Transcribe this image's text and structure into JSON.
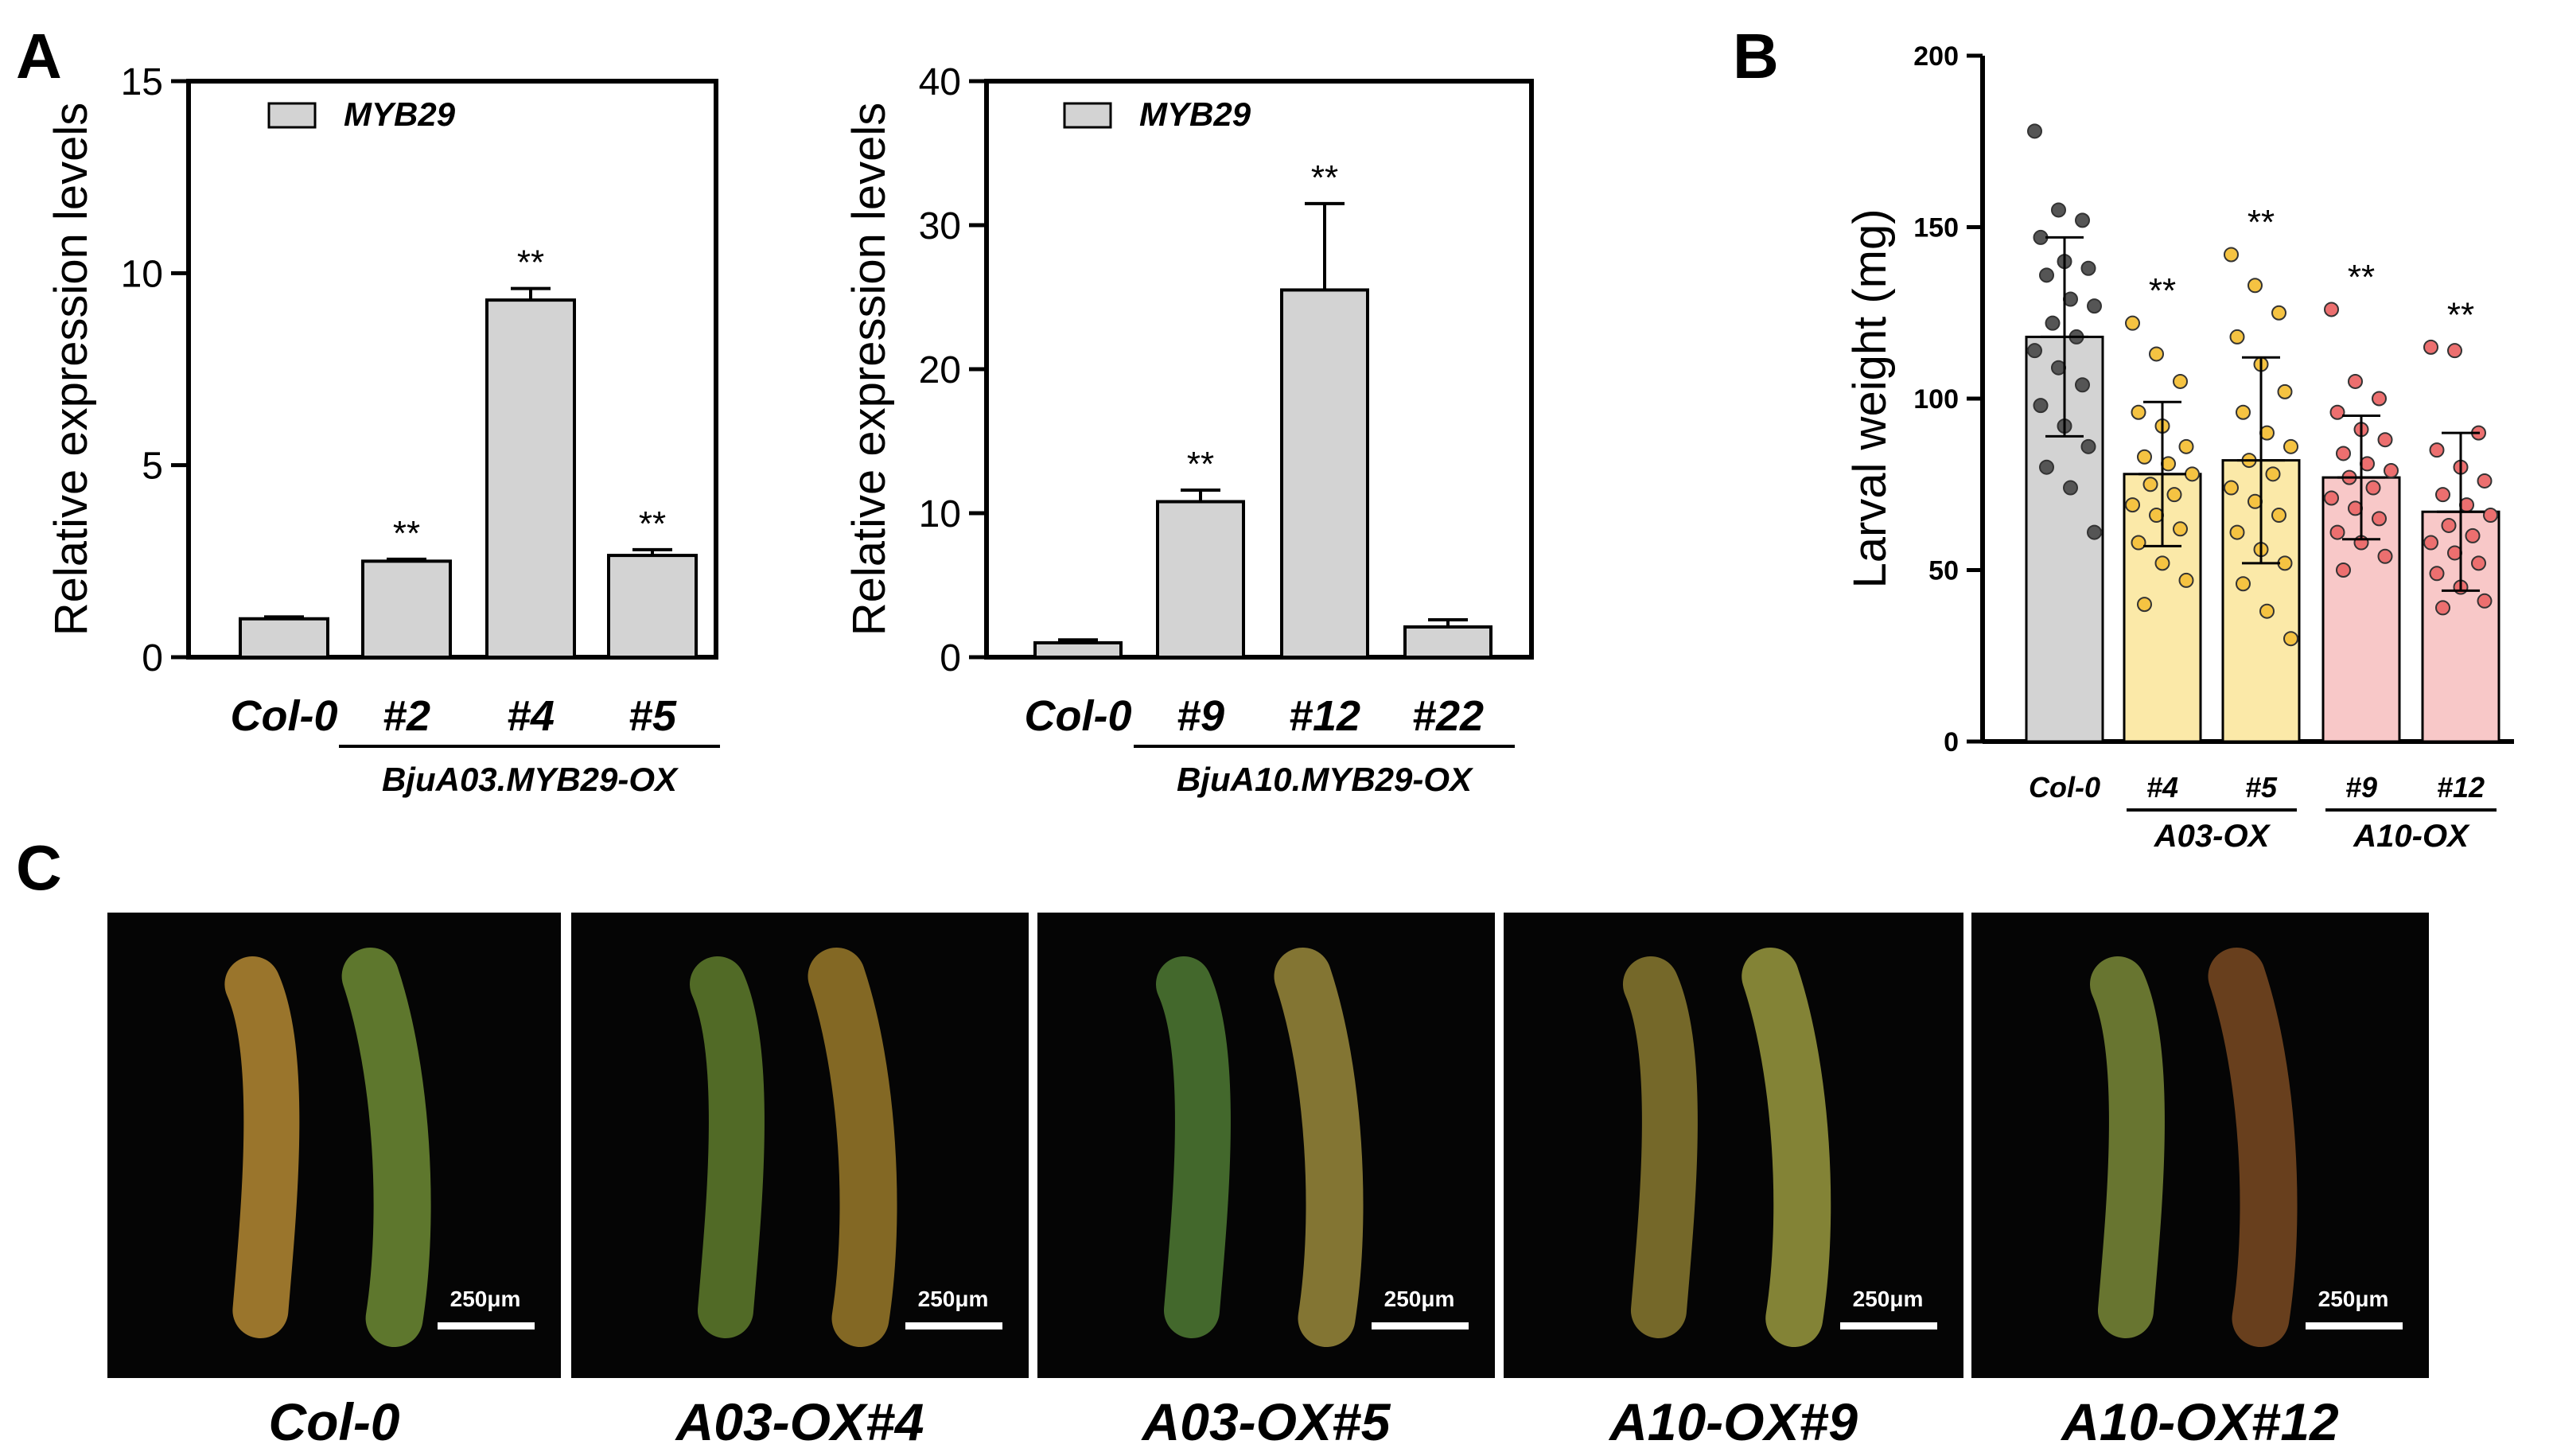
{
  "panels": {
    "A": "A",
    "B": "B",
    "C": "C"
  },
  "chart_data": [
    {
      "type": "bar",
      "panel": "A",
      "ylabel": "Relative expression levels",
      "ylim": [
        0,
        15
      ],
      "yticks": [
        "0",
        "5",
        "10",
        "15"
      ],
      "legend": {
        "entries": [
          "MYB29"
        ],
        "position": "top-left"
      },
      "categories": [
        "Col-0",
        "#2",
        "#4",
        "#5"
      ],
      "series": [
        {
          "name": "MYB29",
          "values": [
            1.0,
            2.5,
            9.3,
            2.65
          ],
          "errors": [
            0.05,
            0.05,
            0.3,
            0.15
          ]
        }
      ],
      "significance": [
        "",
        "**",
        "**",
        "**"
      ],
      "group_label": "BjuA03.MYB29-OX",
      "bar_color": "#d3d3d3"
    },
    {
      "type": "bar",
      "panel": "A",
      "ylabel": "Relative expression levels",
      "ylim": [
        0,
        40
      ],
      "yticks": [
        "0",
        "10",
        "20",
        "30",
        "40"
      ],
      "legend": {
        "entries": [
          "MYB29"
        ],
        "position": "top-left"
      },
      "categories": [
        "Col-0",
        "#9",
        "#12",
        "#22"
      ],
      "series": [
        {
          "name": "MYB29",
          "values": [
            1.0,
            10.8,
            25.5,
            2.1
          ],
          "errors": [
            0.2,
            0.8,
            6.0,
            0.5
          ]
        }
      ],
      "significance": [
        "",
        "**",
        "**",
        ""
      ],
      "group_label": "BjuA10.MYB29-OX",
      "bar_color": "#d3d3d3"
    },
    {
      "type": "bar",
      "panel": "B",
      "ylabel": "Larval weight (mg)",
      "ylim": [
        0,
        200
      ],
      "yticks": [
        "0",
        "50",
        "100",
        "150",
        "200"
      ],
      "categories": [
        "Col-0",
        "#4",
        "#5",
        "#9",
        "#12"
      ],
      "values": [
        118,
        78,
        82,
        77,
        67
      ],
      "errors": [
        29,
        21,
        30,
        18,
        23
      ],
      "significance": [
        "",
        "**",
        "**",
        "**",
        "**"
      ],
      "groups": [
        {
          "label": "A03-OX",
          "categories": [
            "#4",
            "#5"
          ]
        },
        {
          "label": "A10-OX",
          "categories": [
            "#9",
            "#12"
          ]
        }
      ],
      "bar_colors": [
        "#d3d3d3",
        "#fbe9a8",
        "#fbe9a8",
        "#f8c8c8",
        "#f8c8c8"
      ],
      "dot_colors": [
        "#555555",
        "#f5c342",
        "#f5c342",
        "#ec6f6f",
        "#ec6f6f"
      ],
      "points": [
        [
          178,
          155,
          152,
          147,
          140,
          138,
          136,
          129,
          127,
          122,
          118,
          114,
          109,
          104,
          98,
          92,
          86,
          80,
          74,
          61
        ],
        [
          122,
          113,
          105,
          96,
          92,
          86,
          83,
          81,
          78,
          75,
          72,
          69,
          66,
          62,
          58,
          52,
          47,
          40
        ],
        [
          142,
          133,
          125,
          118,
          110,
          102,
          96,
          90,
          86,
          82,
          78,
          74,
          70,
          66,
          61,
          56,
          52,
          46,
          38,
          30
        ],
        [
          126,
          105,
          100,
          96,
          91,
          88,
          84,
          81,
          79,
          77,
          74,
          71,
          68,
          65,
          61,
          58,
          54,
          50
        ],
        [
          115,
          114,
          90,
          85,
          80,
          76,
          72,
          69,
          66,
          63,
          60,
          58,
          55,
          52,
          49,
          45,
          41,
          39
        ]
      ]
    }
  ],
  "photos": {
    "labels": [
      "Col-0",
      "A03-OX#4",
      "A03-OX#5",
      "A10-OX#9",
      "A10-OX#12"
    ],
    "scale_bar": "250μm"
  }
}
